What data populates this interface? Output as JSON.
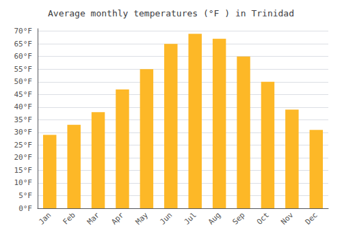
{
  "chart_data": {
    "type": "bar",
    "title": "Average monthly temperatures (°F ) in Trinidad",
    "categories": [
      "Jan",
      "Feb",
      "Mar",
      "Apr",
      "May",
      "Jun",
      "Jul",
      "Aug",
      "Sep",
      "Oct",
      "Nov",
      "Dec"
    ],
    "values": [
      29,
      33,
      38,
      47,
      55,
      65,
      69,
      67,
      60,
      50,
      39,
      31
    ],
    "color": "#FDB827",
    "ylim": [
      0,
      71
    ],
    "yticks": [
      {
        "value": 0,
        "label": "0°F"
      },
      {
        "value": 5,
        "label": "5°F"
      },
      {
        "value": 10,
        "label": "10°F"
      },
      {
        "value": 15,
        "label": "15°F"
      },
      {
        "value": 20,
        "label": "20°F"
      },
      {
        "value": 25,
        "label": "25°F"
      },
      {
        "value": 30,
        "label": "30°F"
      },
      {
        "value": 35,
        "label": "35°F"
      },
      {
        "value": 40,
        "label": "40°F"
      },
      {
        "value": 45,
        "label": "45°F"
      },
      {
        "value": 50,
        "label": "50°F"
      },
      {
        "value": 55,
        "label": "55°F"
      },
      {
        "value": 60,
        "label": "60°F"
      },
      {
        "value": 65,
        "label": "65°F"
      },
      {
        "value": 70,
        "label": "70°F"
      }
    ],
    "grid": true
  }
}
